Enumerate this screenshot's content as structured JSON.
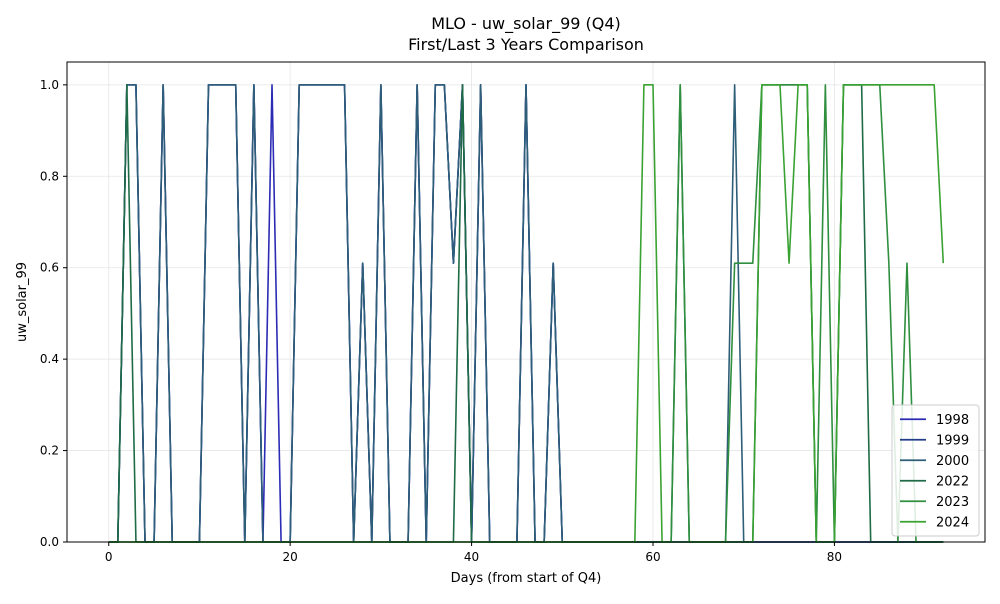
{
  "chart_data": {
    "type": "line",
    "title": "MLO - uw_solar_99 (Q4)",
    "subtitle": "First/Last 3 Years Comparison",
    "xlabel": "Days (from start of Q4)",
    "ylabel": "uw_solar_99",
    "xlim": [
      -4.6,
      96.6
    ],
    "ylim": [
      0.0,
      1.05
    ],
    "xticks": [
      0,
      20,
      40,
      60,
      80
    ],
    "yticks": [
      0.0,
      0.2,
      0.4,
      0.6,
      0.8,
      1.0
    ],
    "xtick_labels": [
      "0",
      "20",
      "40",
      "60",
      "80"
    ],
    "ytick_labels": [
      "0.0",
      "0.2",
      "0.4",
      "0.6",
      "0.8",
      "1.0"
    ],
    "grid": true,
    "legend_position": "lower-right",
    "series": [
      {
        "name": "1998",
        "color": "#2b2bb5",
        "x": [
          0,
          1,
          2,
          3,
          4,
          5,
          6,
          7,
          8,
          9,
          10,
          11,
          12,
          13,
          14,
          15,
          16,
          17,
          18,
          19,
          20,
          21,
          22,
          23,
          24,
          25,
          26,
          27,
          28,
          29,
          30,
          31,
          32,
          33,
          34,
          35,
          36,
          37,
          38,
          39,
          40,
          41,
          42,
          43,
          44,
          45,
          46,
          47,
          48,
          49,
          50,
          51,
          52,
          53,
          54,
          55,
          56,
          57,
          58,
          59,
          60,
          61,
          62,
          63,
          64,
          65,
          66,
          67,
          68,
          69,
          70,
          71,
          72,
          73,
          74,
          75,
          76,
          77,
          78,
          79,
          80,
          81,
          82,
          83,
          84,
          85,
          86,
          87,
          88,
          89,
          90,
          91,
          92
        ],
        "y": [
          0,
          0,
          1,
          1,
          0,
          0,
          1,
          0,
          0,
          0,
          0,
          1,
          1,
          1,
          1,
          0,
          1,
          0,
          1,
          0,
          0,
          1,
          1,
          1,
          1,
          1,
          1,
          0,
          0.61,
          0,
          1,
          0,
          0,
          0,
          1,
          0,
          1,
          1,
          0.61,
          1,
          0,
          1,
          0,
          0,
          0,
          0,
          1,
          0,
          0,
          0.61,
          0,
          0,
          0,
          0,
          0,
          0,
          0,
          0,
          0,
          0,
          0,
          0,
          0,
          0,
          0,
          0,
          0,
          0,
          0,
          0,
          0,
          0,
          0,
          0,
          0,
          0,
          0,
          0,
          0,
          0,
          0,
          0,
          0,
          0,
          0,
          0,
          0,
          0,
          0,
          0,
          0,
          0,
          0
        ]
      },
      {
        "name": "1999",
        "color": "#1f3c88",
        "x": [
          0,
          1,
          2,
          3,
          4,
          5,
          6,
          7,
          8,
          9,
          10,
          11,
          12,
          13,
          14,
          15,
          16,
          17,
          18,
          19,
          20,
          21,
          22,
          23,
          24,
          25,
          26,
          27,
          28,
          29,
          30,
          31,
          32,
          33,
          34,
          35,
          36,
          37,
          38,
          39,
          40,
          41,
          42,
          43,
          44,
          45,
          46,
          47,
          48,
          49,
          50,
          51,
          52,
          53,
          54,
          55,
          56,
          57,
          58,
          59,
          60,
          61,
          62,
          63,
          64,
          65,
          66,
          67,
          68,
          69,
          70,
          71,
          72,
          73,
          74,
          75,
          76,
          77,
          78,
          79,
          80,
          81,
          82,
          83,
          84,
          85,
          86,
          87,
          88,
          89,
          90,
          91,
          92
        ],
        "y": [
          0,
          0,
          1,
          1,
          0,
          0,
          1,
          0,
          0,
          0,
          0,
          1,
          1,
          1,
          1,
          0,
          1,
          0,
          0,
          0,
          0,
          1,
          1,
          1,
          1,
          1,
          1,
          0,
          0.61,
          0,
          1,
          0,
          0,
          0,
          1,
          0,
          1,
          1,
          0.61,
          1,
          0,
          1,
          0,
          0,
          0,
          0,
          1,
          0,
          0,
          0.61,
          0,
          0,
          0,
          0,
          0,
          0,
          0,
          0,
          0,
          0,
          0,
          0,
          0,
          0,
          0,
          0,
          0,
          0,
          0,
          0,
          0,
          0,
          0,
          0,
          0,
          0,
          0,
          0,
          0,
          0,
          0,
          0,
          0,
          0,
          0,
          0,
          0,
          0,
          0,
          0,
          0,
          0,
          0
        ]
      },
      {
        "name": "2000",
        "color": "#2e5e78",
        "x": [
          0,
          1,
          2,
          3,
          4,
          5,
          6,
          7,
          8,
          9,
          10,
          11,
          12,
          13,
          14,
          15,
          16,
          17,
          18,
          19,
          20,
          21,
          22,
          23,
          24,
          25,
          26,
          27,
          28,
          29,
          30,
          31,
          32,
          33,
          34,
          35,
          36,
          37,
          38,
          39,
          40,
          41,
          42,
          43,
          44,
          45,
          46,
          47,
          48,
          49,
          50,
          51,
          52,
          53,
          54,
          55,
          56,
          57,
          58,
          59,
          60,
          61,
          62,
          63,
          64,
          65,
          66,
          67,
          68,
          69,
          70,
          71,
          72,
          73,
          74,
          75,
          76,
          77,
          78,
          79,
          80,
          81,
          82,
          83,
          84,
          85,
          86,
          87,
          88,
          89,
          90,
          91,
          92
        ],
        "y": [
          0,
          0,
          1,
          1,
          0,
          0,
          1,
          0,
          0,
          0,
          0,
          1,
          1,
          1,
          1,
          0,
          1,
          0,
          0,
          0,
          0,
          1,
          1,
          1,
          1,
          1,
          1,
          0,
          0.61,
          0,
          1,
          0,
          0,
          0,
          1,
          0,
          1,
          1,
          0.61,
          1,
          0,
          1,
          0,
          0,
          0,
          0,
          1,
          0,
          0,
          0.61,
          0,
          0,
          0,
          0,
          0,
          0,
          0,
          0,
          0,
          0,
          0,
          0,
          0,
          0,
          0,
          0,
          0,
          0,
          0,
          1,
          0,
          0,
          0,
          0,
          0,
          0,
          0,
          0,
          0,
          0,
          0,
          0,
          0,
          0,
          0,
          0,
          0,
          0,
          0,
          0,
          0,
          0,
          0
        ]
      },
      {
        "name": "2022",
        "color": "#1e6b46",
        "x": [
          0,
          1,
          2,
          3,
          4,
          5,
          6,
          7,
          8,
          9,
          10,
          11,
          12,
          13,
          14,
          15,
          16,
          17,
          18,
          19,
          20,
          21,
          22,
          23,
          24,
          25,
          26,
          27,
          28,
          29,
          30,
          31,
          32,
          33,
          34,
          35,
          36,
          37,
          38,
          39,
          40,
          41,
          42,
          43,
          44,
          45,
          46,
          47,
          48,
          49,
          50,
          51,
          52,
          53,
          54,
          55,
          56,
          57,
          58,
          59,
          60,
          61,
          62,
          63,
          64,
          65,
          66,
          67,
          68,
          69,
          70,
          71,
          72,
          73,
          74,
          75,
          76,
          77,
          78,
          79,
          80,
          81,
          82,
          83,
          84,
          85,
          86,
          87,
          88,
          89,
          90,
          91,
          92
        ],
        "y": [
          0,
          0,
          1,
          0,
          0,
          0,
          0,
          0,
          0,
          0,
          0,
          0,
          0,
          0,
          0,
          0,
          0,
          0,
          0,
          0,
          0,
          0,
          0,
          0,
          0,
          0,
          0,
          0,
          0,
          0,
          0,
          0,
          0,
          0,
          0,
          0,
          0,
          0,
          0,
          1,
          0,
          0,
          0,
          0,
          0,
          0,
          0,
          0,
          0,
          0,
          0,
          0,
          0,
          0,
          0,
          0,
          0,
          0,
          0,
          0,
          0,
          0,
          0,
          1,
          0,
          0,
          0,
          0,
          0,
          0,
          0,
          0,
          1,
          1,
          1,
          1,
          1,
          1,
          0,
          0,
          0,
          1,
          1,
          1,
          0,
          0,
          0,
          0,
          0,
          0,
          0,
          0,
          0
        ]
      },
      {
        "name": "2023",
        "color": "#2f8f3f",
        "x": [
          0,
          1,
          2,
          3,
          4,
          5,
          6,
          7,
          8,
          9,
          10,
          11,
          12,
          13,
          14,
          15,
          16,
          17,
          18,
          19,
          20,
          21,
          22,
          23,
          24,
          25,
          26,
          27,
          28,
          29,
          30,
          31,
          32,
          33,
          34,
          35,
          36,
          37,
          38,
          39,
          40,
          41,
          42,
          43,
          44,
          45,
          46,
          47,
          48,
          49,
          50,
          51,
          52,
          53,
          54,
          55,
          56,
          57,
          58,
          59,
          60,
          61,
          62,
          63,
          64,
          65,
          66,
          67,
          68,
          69,
          70,
          71,
          72,
          73,
          74,
          75,
          76,
          77,
          78,
          79,
          80,
          81,
          82,
          83,
          84,
          85,
          86,
          87,
          88,
          89,
          90,
          91,
          92
        ],
        "y": [
          0,
          0,
          0,
          0,
          0,
          0,
          0,
          0,
          0,
          0,
          0,
          0,
          0,
          0,
          0,
          0,
          0,
          0,
          0,
          0,
          0,
          0,
          0,
          0,
          0,
          0,
          0,
          0,
          0,
          0,
          0,
          0,
          0,
          0,
          0,
          0,
          0,
          0,
          0,
          0,
          0,
          0,
          0,
          0,
          0,
          0,
          0,
          0,
          0,
          0,
          0,
          0,
          0,
          0,
          0,
          0,
          0,
          0,
          0,
          0,
          0,
          0,
          0,
          1,
          0,
          0,
          0,
          0,
          0,
          0.61,
          0.61,
          0.61,
          1,
          1,
          1,
          1,
          1,
          1,
          0,
          1,
          0,
          1,
          1,
          1,
          1,
          1,
          0.61,
          0,
          0.61,
          0,
          0,
          0,
          0
        ]
      },
      {
        "name": "2024",
        "color": "#3aa232",
        "x": [
          0,
          1,
          2,
          3,
          4,
          5,
          6,
          7,
          8,
          9,
          10,
          11,
          12,
          13,
          14,
          15,
          16,
          17,
          18,
          19,
          20,
          21,
          22,
          23,
          24,
          25,
          26,
          27,
          28,
          29,
          30,
          31,
          32,
          33,
          34,
          35,
          36,
          37,
          38,
          39,
          40,
          41,
          42,
          43,
          44,
          45,
          46,
          47,
          48,
          49,
          50,
          51,
          52,
          53,
          54,
          55,
          56,
          57,
          58,
          59,
          60,
          61,
          62,
          63,
          64,
          65,
          66,
          67,
          68,
          69,
          70,
          71,
          72,
          73,
          74,
          75,
          76,
          77,
          78,
          79,
          80,
          81,
          82,
          83,
          84,
          85,
          86,
          87,
          88,
          89,
          90,
          91,
          92
        ],
        "y": [
          0,
          0,
          0,
          0,
          0,
          0,
          0,
          0,
          0,
          0,
          0,
          0,
          0,
          0,
          0,
          0,
          0,
          0,
          0,
          0,
          0,
          0,
          0,
          0,
          0,
          0,
          0,
          0,
          0,
          0,
          0,
          0,
          0,
          0,
          0,
          0,
          0,
          0,
          0,
          0,
          0,
          0,
          0,
          0,
          0,
          0,
          0,
          0,
          0,
          0,
          0,
          0,
          0,
          0,
          0,
          0,
          0,
          0,
          0,
          1,
          1,
          0,
          0,
          0,
          0,
          0,
          0,
          0,
          0,
          0,
          0,
          0,
          1,
          1,
          1,
          0.61,
          1,
          1,
          0,
          0,
          0,
          1,
          1,
          1,
          1,
          1,
          1,
          1,
          1,
          1,
          1,
          1,
          0.61
        ]
      }
    ]
  }
}
